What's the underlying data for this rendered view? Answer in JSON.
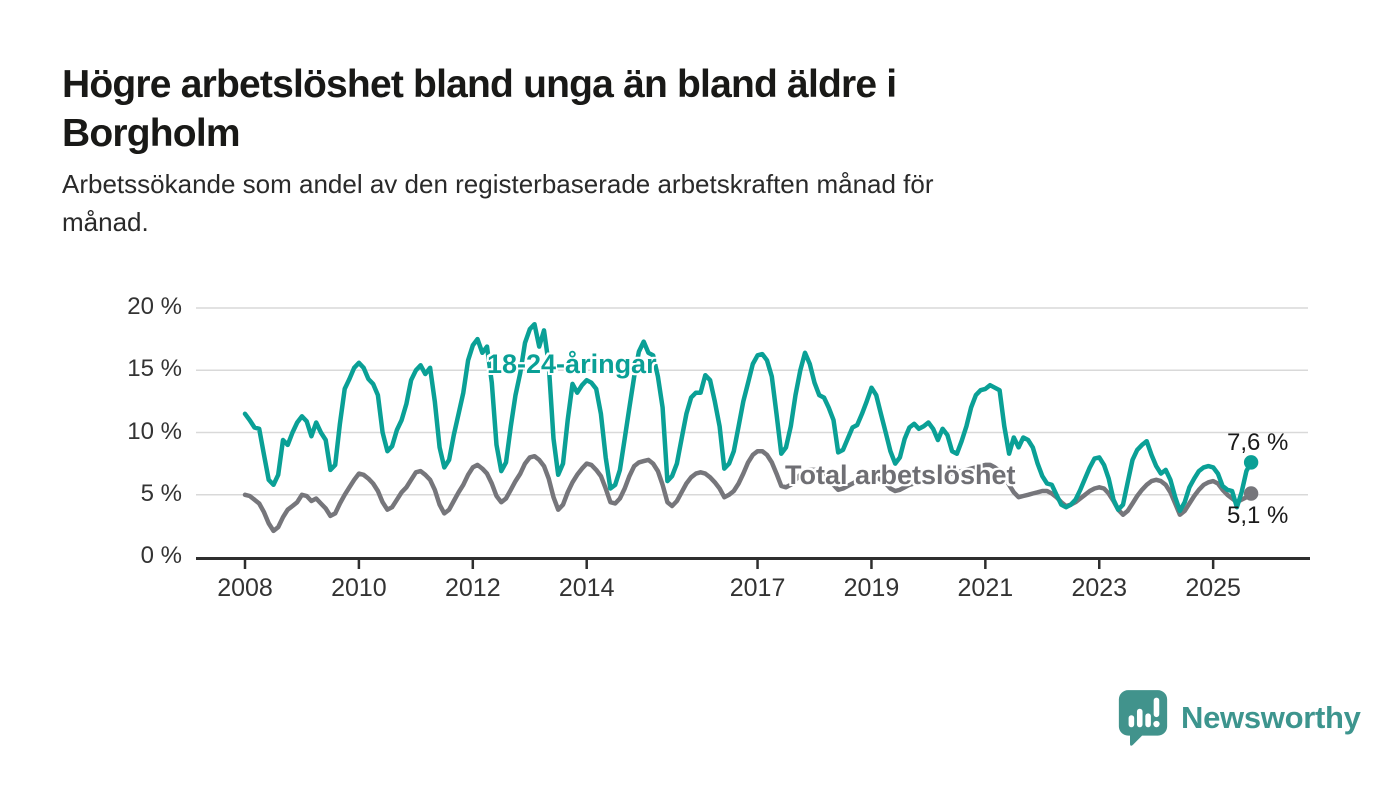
{
  "page": {
    "background": "#ffffff"
  },
  "header": {
    "title": "Högre arbetslöshet bland unga än bland äldre i Borgholm",
    "title_lines": [
      "Högre arbetslöshet bland unga än bland äldre i",
      "Borgholm"
    ],
    "subtitle": "Arbetssökande som andel av den registerbaserade arbetskraften månad för månad.",
    "subtitle_lines": [
      "Arbetssökande som andel av den registerbaserade arbetskraften månad för",
      "månad."
    ]
  },
  "chart_data": {
    "type": "line",
    "title": "Högre arbetslöshet bland unga än bland äldre i Borgholm",
    "subtitle": "Arbetssökande som andel av den registerbaserade arbetskraften månad för månad.",
    "unit": "percent",
    "frequency": "monthly",
    "grid": true,
    "legend_position": "inline-labels-on-chart",
    "x": {
      "start": "2008-01",
      "end": "2025-09",
      "tick_years": [
        2008,
        2010,
        2012,
        2014,
        2017,
        2019,
        2021,
        2023,
        2025
      ],
      "tick_labels": [
        "2008",
        "2010",
        "2012",
        "2014",
        "2017",
        "2019",
        "2021",
        "2023",
        "2025"
      ]
    },
    "y": {
      "min": 0,
      "max": 20,
      "tick_values": [
        0,
        5,
        10,
        15,
        20
      ],
      "tick_labels": [
        "0 %",
        "5 %",
        "10 %",
        "15 %",
        "20 %"
      ]
    },
    "series": [
      {
        "name": "18-24-åringar",
        "color": "#0aa096",
        "end_value": 7.6,
        "end_value_label": "7,6 %",
        "start": "2008-01",
        "values": [
          11.5,
          11.0,
          10.4,
          10.3,
          8.2,
          6.2,
          5.8,
          6.6,
          9.4,
          9.0,
          10.0,
          10.8,
          11.3,
          10.9,
          9.7,
          10.8,
          10.0,
          9.4,
          7.0,
          7.4,
          10.7,
          13.5,
          14.3,
          15.2,
          15.6,
          15.2,
          14.3,
          13.9,
          13.0,
          10.0,
          8.5,
          8.9,
          10.2,
          11.0,
          12.3,
          14.2,
          15.0,
          15.4,
          14.7,
          15.2,
          12.5,
          8.8,
          7.2,
          7.8,
          9.8,
          11.5,
          13.2,
          15.8,
          17.0,
          17.5,
          16.4,
          16.9,
          14.0,
          9.0,
          6.9,
          7.6,
          10.5,
          13.0,
          14.8,
          17.2,
          18.3,
          18.7,
          16.9,
          18.2,
          15.5,
          9.5,
          6.6,
          7.5,
          11.0,
          13.9,
          13.2,
          13.8,
          14.2,
          14.0,
          13.5,
          11.5,
          8.0,
          5.5,
          5.8,
          7.0,
          9.5,
          12.0,
          14.5,
          16.5,
          17.3,
          16.4,
          16.2,
          14.5,
          12.0,
          6.1,
          6.5,
          7.5,
          9.5,
          11.5,
          12.8,
          13.2,
          13.2,
          14.6,
          14.2,
          12.5,
          10.5,
          7.1,
          7.5,
          8.5,
          10.5,
          12.5,
          14.0,
          15.5,
          16.2,
          16.3,
          15.8,
          14.5,
          11.5,
          8.3,
          8.8,
          10.5,
          13.0,
          15.0,
          16.4,
          15.5,
          14.0,
          13.0,
          12.8,
          12.0,
          11.0,
          8.4,
          8.6,
          9.5,
          10.4,
          10.6,
          11.5,
          12.5,
          13.6,
          13.0,
          11.5,
          10.0,
          8.5,
          7.5,
          8.0,
          9.5,
          10.4,
          10.7,
          10.3,
          10.5,
          10.8,
          10.3,
          9.4,
          10.3,
          9.8,
          8.5,
          8.3,
          9.3,
          10.5,
          12.0,
          13.0,
          13.4,
          13.5,
          13.8,
          13.6,
          13.4,
          10.5,
          8.3,
          9.6,
          8.8,
          9.6,
          9.4,
          8.8,
          7.5,
          6.5,
          5.9,
          5.8,
          5.0,
          4.2,
          4.0,
          4.2,
          4.6,
          5.4,
          6.3,
          7.2,
          7.9,
          8.0,
          7.4,
          6.3,
          4.6,
          3.8,
          4.2,
          6.0,
          7.8,
          8.6,
          9.0,
          9.3,
          8.2,
          7.3,
          6.7,
          7.0,
          6.2,
          4.8,
          3.7,
          4.4,
          5.6,
          6.3,
          6.9,
          7.2,
          7.3,
          7.2,
          6.7,
          5.7,
          5.4,
          5.3,
          4.0,
          5.2,
          6.9,
          7.6
        ]
      },
      {
        "name": "Total arbetslöshet",
        "color": "#76767b",
        "end_value": 5.1,
        "end_value_label": "5,1 %",
        "start": "2008-01",
        "values": [
          5.0,
          4.9,
          4.6,
          4.3,
          3.6,
          2.7,
          2.1,
          2.4,
          3.2,
          3.8,
          4.1,
          4.4,
          5.0,
          4.9,
          4.5,
          4.7,
          4.3,
          3.9,
          3.3,
          3.5,
          4.3,
          5.0,
          5.6,
          6.2,
          6.7,
          6.6,
          6.3,
          5.9,
          5.3,
          4.4,
          3.8,
          4.0,
          4.6,
          5.2,
          5.6,
          6.2,
          6.8,
          6.9,
          6.6,
          6.2,
          5.4,
          4.2,
          3.5,
          3.8,
          4.5,
          5.2,
          5.8,
          6.6,
          7.2,
          7.4,
          7.1,
          6.7,
          5.9,
          4.9,
          4.4,
          4.7,
          5.4,
          6.1,
          6.7,
          7.5,
          8.0,
          8.1,
          7.8,
          7.3,
          6.3,
          4.8,
          3.8,
          4.2,
          5.2,
          6.0,
          6.6,
          7.1,
          7.5,
          7.4,
          7.0,
          6.5,
          5.5,
          4.4,
          4.3,
          4.7,
          5.5,
          6.5,
          7.3,
          7.6,
          7.7,
          7.8,
          7.5,
          6.9,
          5.8,
          4.4,
          4.1,
          4.5,
          5.2,
          5.9,
          6.4,
          6.7,
          6.8,
          6.7,
          6.4,
          6.0,
          5.5,
          4.8,
          5.0,
          5.3,
          5.9,
          6.7,
          7.6,
          8.2,
          8.5,
          8.5,
          8.2,
          7.6,
          6.7,
          5.7,
          5.6,
          5.8,
          6.2,
          6.6,
          6.9,
          7.0,
          7.0,
          6.9,
          6.7,
          6.3,
          5.8,
          5.4,
          5.5,
          5.7,
          5.9,
          6.1,
          6.3,
          6.4,
          6.5,
          6.4,
          6.2,
          5.9,
          5.5,
          5.3,
          5.4,
          5.6,
          5.8,
          5.9,
          6.0,
          6.1,
          6.2,
          6.1,
          6.0,
          6.4,
          6.6,
          6.7,
          6.8,
          6.9,
          7.0,
          7.1,
          7.2,
          7.3,
          7.4,
          7.4,
          7.2,
          6.9,
          6.4,
          5.8,
          5.2,
          4.8,
          4.9,
          5.0,
          5.1,
          5.2,
          5.3,
          5.3,
          5.1,
          4.8,
          4.4,
          4.1,
          4.2,
          4.4,
          4.7,
          5.0,
          5.3,
          5.5,
          5.6,
          5.5,
          5.1,
          4.5,
          3.8,
          3.4,
          3.7,
          4.3,
          4.9,
          5.4,
          5.8,
          6.1,
          6.2,
          6.1,
          5.8,
          5.2,
          4.3,
          3.4,
          3.7,
          4.3,
          4.9,
          5.4,
          5.8,
          6.0,
          6.1,
          5.9,
          5.4,
          5.0,
          4.7,
          4.4,
          4.6,
          4.8,
          5.1
        ]
      }
    ],
    "colors": {
      "accent_teal": "#0aa096",
      "series_gray": "#76767b",
      "axis": "#2e2e2e",
      "gridline": "#d9d9d9"
    }
  },
  "footer": {
    "brand": "Newsworthy",
    "brand_color": "#3d958e",
    "logo_icon": "speech-bubble-bar-chart-icon"
  }
}
